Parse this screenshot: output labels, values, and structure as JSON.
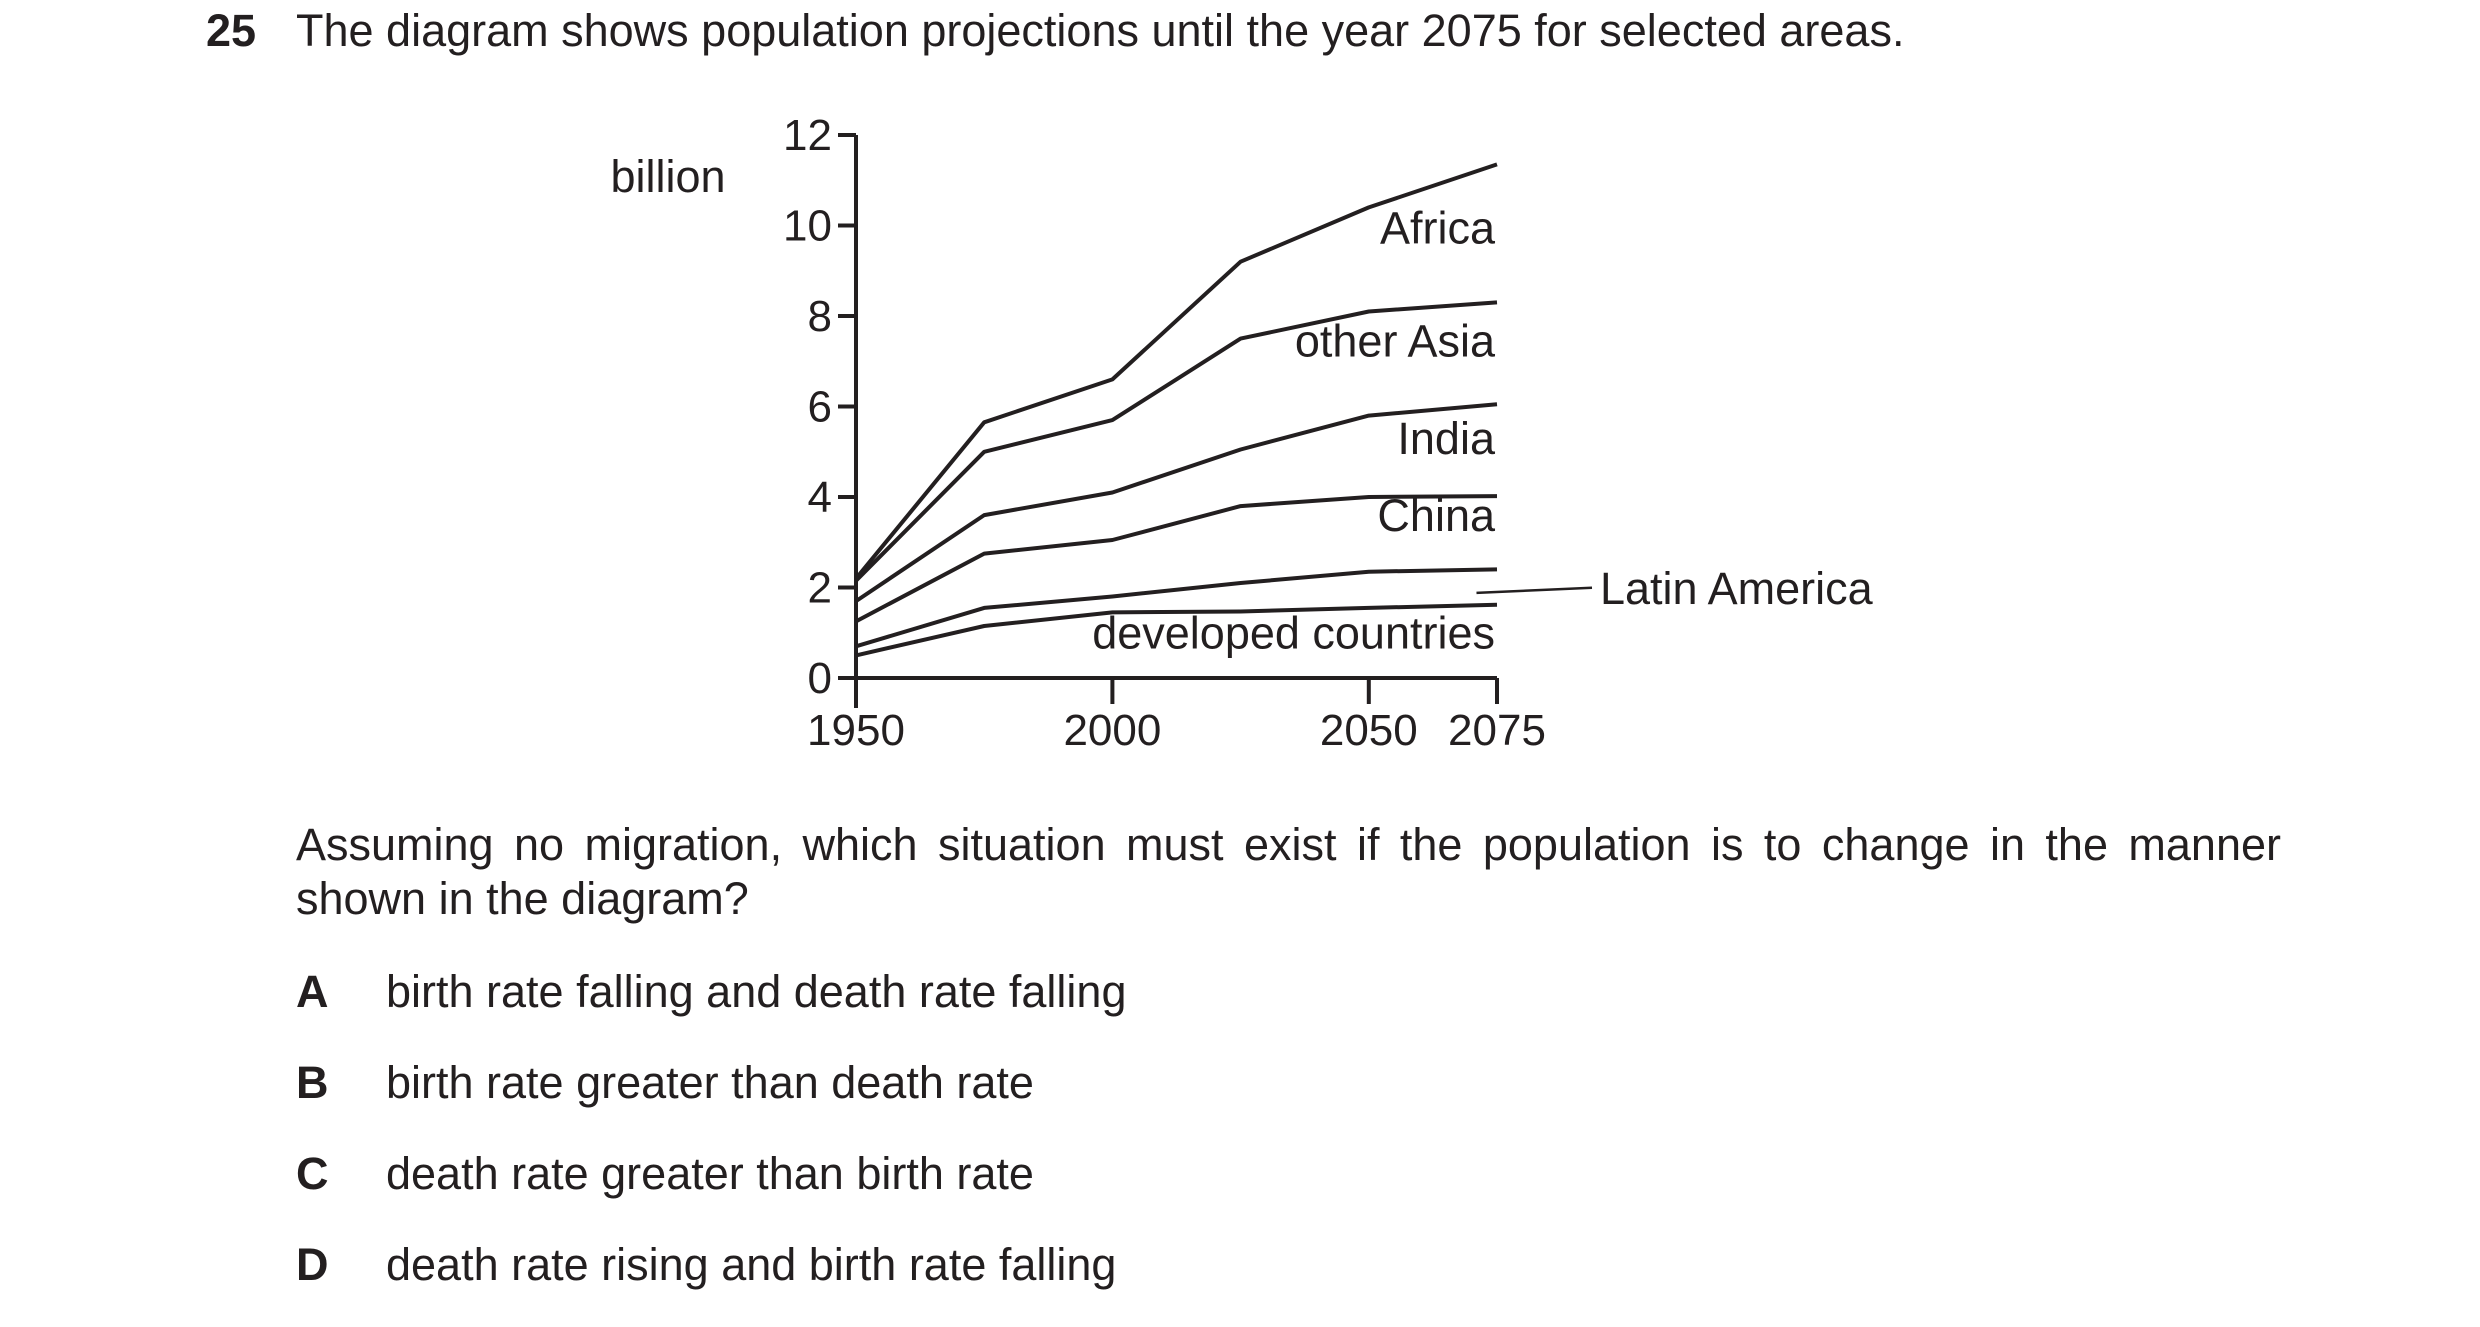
{
  "question": {
    "number": "25",
    "stem": "The diagram shows population projections until the year 2075 for selected areas.",
    "prompt": "Assuming no migration, which situation must exist if the population is to change in the manner shown in the diagram?",
    "options": [
      {
        "letter": "A",
        "text": "birth rate falling and death rate falling"
      },
      {
        "letter": "B",
        "text": "birth rate greater than death rate"
      },
      {
        "letter": "C",
        "text": "death rate greater than birth rate"
      },
      {
        "letter": "D",
        "text": "death rate rising and birth rate falling"
      }
    ]
  },
  "chart_data": {
    "type": "area",
    "stacked": true,
    "title": "",
    "xlabel": "",
    "ylabel": "billion",
    "xlim": [
      1950,
      2075
    ],
    "ylim": [
      0,
      12
    ],
    "x_ticks": [
      1950,
      2000,
      2050,
      2075
    ],
    "y_ticks": [
      0,
      2,
      4,
      6,
      8,
      10,
      12
    ],
    "grid": false,
    "line_color": "#231f20",
    "x": [
      1950,
      1975,
      2000,
      2025,
      2050,
      2075
    ],
    "boundaries": [
      [
        0.5,
        1.15,
        1.45,
        1.47,
        1.55,
        1.62
      ],
      [
        0.7,
        1.55,
        1.8,
        2.1,
        2.35,
        2.4
      ],
      [
        1.25,
        2.75,
        3.05,
        3.8,
        4.0,
        4.02
      ],
      [
        1.7,
        3.6,
        4.1,
        5.05,
        5.8,
        6.05
      ],
      [
        2.15,
        5.0,
        5.7,
        7.5,
        8.1,
        8.3
      ],
      [
        2.2,
        5.65,
        6.6,
        9.2,
        10.4,
        11.35
      ]
    ],
    "region_labels": [
      {
        "name": "Africa",
        "x": 2075,
        "y": 9.6
      },
      {
        "name": "other Asia",
        "x": 2075,
        "y": 7.1
      },
      {
        "name": "India",
        "x": 2075,
        "y": 4.95
      },
      {
        "name": "China",
        "x": 2075,
        "y": 3.25
      },
      {
        "name": "developed countries",
        "x": 2075,
        "y": 0.65
      }
    ],
    "callout_label": {
      "name": "Latin America",
      "x": 2071,
      "y": 1.95
    }
  }
}
